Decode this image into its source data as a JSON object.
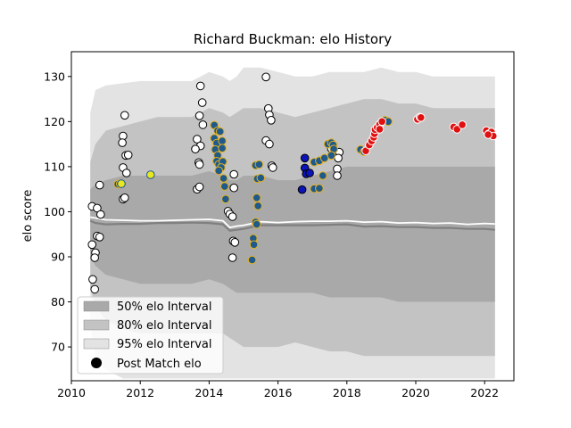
{
  "chart_data": {
    "type": "scatter",
    "title": "Richard Buckman: elo History",
    "xlabel": "",
    "ylabel": "elo score",
    "xlim": [
      2010,
      2022.85
    ],
    "ylim": [
      62.5,
      135.5
    ],
    "xticks": [
      2010,
      2012,
      2014,
      2016,
      2018,
      2020,
      2022
    ],
    "yticks": [
      70,
      80,
      90,
      100,
      110,
      120,
      130
    ],
    "grid": false,
    "legend_placement": "lower-left",
    "legend": [
      {
        "label": "50% elo Interval",
        "kind": "band",
        "color": "#a9a9a9"
      },
      {
        "label": "80% elo Interval",
        "kind": "band",
        "color": "#c3c3c3"
      },
      {
        "label": "95% elo Interval",
        "kind": "band",
        "color": "#e3e3e3"
      },
      {
        "label": "Post Match elo",
        "kind": "marker",
        "color": "#000000"
      }
    ],
    "colors": {
      "band95": "#e3e3e3",
      "band80": "#c3c3c3",
      "band50": "#a9a9a9",
      "mean_line": "#ffffff",
      "median_line": "#808080"
    },
    "bands": {
      "x": [
        2010.55,
        2010.7,
        2011.0,
        2011.5,
        2012.0,
        2012.5,
        2013.0,
        2013.5,
        2014.0,
        2014.4,
        2014.6,
        2014.8,
        2015.0,
        2015.5,
        2016.0,
        2016.5,
        2017.0,
        2017.5,
        2018.0,
        2018.5,
        2019.0,
        2019.5,
        2020.0,
        2020.5,
        2021.0,
        2021.5,
        2022.0,
        2022.3
      ],
      "upper95": [
        122,
        127,
        128,
        128.5,
        129,
        129,
        129,
        129,
        131,
        130,
        129,
        130,
        132,
        132,
        131,
        130,
        130,
        131,
        131,
        131,
        132,
        131,
        131,
        130,
        130,
        130,
        130,
        130
      ],
      "upper80": [
        111,
        115,
        118,
        119,
        120,
        121,
        121,
        121,
        123,
        122,
        121,
        122,
        123,
        123,
        122,
        121,
        122,
        123,
        124,
        125,
        125,
        124,
        124,
        123,
        123,
        123,
        123,
        123
      ],
      "upper50": [
        105,
        106,
        107,
        108,
        108,
        108,
        108,
        108,
        109,
        108,
        107,
        107,
        108,
        108,
        107,
        107,
        108,
        109,
        110,
        110,
        110,
        110,
        110,
        110,
        110,
        110,
        110,
        110
      ],
      "lower50": [
        90,
        88,
        86,
        85,
        84,
        84,
        84,
        84,
        85,
        84,
        83,
        82,
        82,
        82,
        82,
        82,
        82,
        81,
        81,
        81,
        81,
        80,
        80,
        80,
        80,
        80,
        80,
        80
      ],
      "lower80": [
        83,
        79,
        76,
        74,
        73,
        73,
        73,
        73,
        73,
        73,
        72,
        71,
        70,
        70,
        70,
        71,
        70,
        69,
        69,
        68,
        68,
        68,
        68,
        68,
        68,
        68,
        68,
        68
      ],
      "lower95": [
        75,
        68,
        65,
        63,
        63,
        63,
        63,
        63,
        63,
        63,
        63,
        63,
        63,
        63,
        63,
        63,
        63,
        63,
        63,
        63,
        63,
        63,
        63,
        63,
        63,
        63,
        63,
        63
      ],
      "mean": [
        98.8,
        98.6,
        98.2,
        98.1,
        98.0,
        98.0,
        98.1,
        98.2,
        98.3,
        98.0,
        96.5,
        96.8,
        97.0,
        97.8,
        97.6,
        97.8,
        97.9,
        97.9,
        98.0,
        97.7,
        97.8,
        97.5,
        97.6,
        97.4,
        97.5,
        97.2,
        97.4,
        97.3
      ],
      "median": [
        98.0,
        97.5,
        97.2,
        97.3,
        97.3,
        97.5,
        97.5,
        97.6,
        97.5,
        97.2,
        95.8,
        96.0,
        96.2,
        97.0,
        97.0,
        97.0,
        97.0,
        97.1,
        97.2,
        96.7,
        96.8,
        96.6,
        96.6,
        96.4,
        96.4,
        96.2,
        96.2,
        96.0
      ]
    },
    "series": [
      {
        "fill": "#ffffff",
        "edge": "#000000",
        "points": [
          [
            2010.6,
            101.2
          ],
          [
            2010.75,
            100.8
          ],
          [
            2010.85,
            99.4
          ],
          [
            2010.75,
            94.6
          ],
          [
            2010.82,
            94.4
          ],
          [
            2010.6,
            92.7
          ],
          [
            2010.7,
            90.9
          ],
          [
            2010.68,
            89.8
          ],
          [
            2010.62,
            85.0
          ],
          [
            2010.68,
            82.8
          ],
          [
            2010.82,
            105.9
          ],
          [
            2011.55,
            121.4
          ],
          [
            2011.5,
            116.8
          ],
          [
            2011.48,
            115.3
          ],
          [
            2011.58,
            112.5
          ],
          [
            2011.65,
            112.6
          ],
          [
            2011.5,
            109.8
          ],
          [
            2011.6,
            108.6
          ],
          [
            2011.5,
            102.8
          ],
          [
            2011.55,
            103.1
          ],
          [
            2013.75,
            127.9
          ],
          [
            2013.8,
            124.2
          ],
          [
            2013.72,
            121.3
          ],
          [
            2013.82,
            119.3
          ],
          [
            2013.65,
            116.1
          ],
          [
            2013.75,
            114.6
          ],
          [
            2013.6,
            113.9
          ],
          [
            2013.7,
            110.9
          ],
          [
            2013.72,
            110.5
          ],
          [
            2013.65,
            105.0
          ],
          [
            2013.72,
            105.5
          ],
          [
            2014.55,
            100.1
          ],
          [
            2014.6,
            99.5
          ],
          [
            2014.68,
            98.9
          ],
          [
            2014.7,
            93.5
          ],
          [
            2014.75,
            93.2
          ],
          [
            2014.68,
            89.8
          ],
          [
            2014.72,
            108.3
          ],
          [
            2014.72,
            105.3
          ],
          [
            2015.65,
            129.9
          ],
          [
            2015.72,
            122.9
          ],
          [
            2015.75,
            121.5
          ],
          [
            2015.8,
            120.3
          ],
          [
            2015.65,
            115.8
          ],
          [
            2015.75,
            115.0
          ],
          [
            2015.82,
            110.2
          ],
          [
            2015.85,
            109.8
          ],
          [
            2017.78,
            113.2
          ],
          [
            2017.75,
            111.9
          ],
          [
            2017.72,
            109.5
          ],
          [
            2017.72,
            108.0
          ],
          [
            2017.55,
            114.0
          ]
        ]
      },
      {
        "fill": "#1f5a8a",
        "edge": "#e5b020",
        "points": [
          [
            2011.35,
            106.1
          ],
          [
            2011.42,
            106.2
          ],
          [
            2014.15,
            119.2
          ],
          [
            2014.25,
            118.0
          ],
          [
            2014.32,
            117.8
          ],
          [
            2014.15,
            116.3
          ],
          [
            2014.22,
            115.2
          ],
          [
            2014.38,
            115.7
          ],
          [
            2014.18,
            113.8
          ],
          [
            2014.38,
            114.1
          ],
          [
            2014.25,
            112.5
          ],
          [
            2014.22,
            111.2
          ],
          [
            2014.28,
            110.5
          ],
          [
            2014.4,
            111.1
          ],
          [
            2014.35,
            109.8
          ],
          [
            2014.28,
            109.1
          ],
          [
            2014.42,
            107.4
          ],
          [
            2014.45,
            105.6
          ],
          [
            2014.48,
            102.8
          ],
          [
            2015.35,
            110.3
          ],
          [
            2015.45,
            110.5
          ],
          [
            2015.4,
            107.3
          ],
          [
            2015.5,
            107.5
          ],
          [
            2015.38,
            103.1
          ],
          [
            2015.42,
            101.3
          ],
          [
            2015.35,
            97.7
          ],
          [
            2015.38,
            97.2
          ],
          [
            2015.28,
            94.1
          ],
          [
            2015.3,
            92.7
          ],
          [
            2015.25,
            89.3
          ],
          [
            2017.05,
            111.0
          ],
          [
            2017.2,
            111.3
          ],
          [
            2017.05,
            105.1
          ],
          [
            2017.2,
            105.2
          ],
          [
            2017.3,
            108.0
          ],
          [
            2017.35,
            111.9
          ],
          [
            2017.45,
            115.0
          ],
          [
            2017.55,
            115.3
          ],
          [
            2017.6,
            114.8
          ],
          [
            2017.62,
            113.9
          ],
          [
            2017.55,
            112.5
          ],
          [
            2018.4,
            113.8
          ],
          [
            2018.5,
            113.3
          ],
          [
            2019.1,
            120.3
          ],
          [
            2019.2,
            120.0
          ]
        ]
      },
      {
        "fill": "#0b14b8",
        "edge": "#000000",
        "points": [
          [
            2016.78,
            111.9
          ],
          [
            2016.78,
            109.7
          ],
          [
            2016.82,
            108.4
          ],
          [
            2016.92,
            108.6
          ],
          [
            2016.7,
            104.9
          ]
        ]
      },
      {
        "fill": "#e8e820",
        "edge": "#1f5a8a",
        "points": [
          [
            2011.45,
            106.2
          ],
          [
            2012.3,
            108.2
          ]
        ]
      },
      {
        "fill": "#e01010",
        "edge": "#ffffff",
        "points": [
          [
            2018.55,
            113.5
          ],
          [
            2018.65,
            114.8
          ],
          [
            2018.72,
            115.7
          ],
          [
            2018.78,
            116.5
          ],
          [
            2018.8,
            117.3
          ],
          [
            2018.82,
            118.2
          ],
          [
            2018.88,
            118.7
          ],
          [
            2018.95,
            119.4
          ],
          [
            2018.95,
            118.3
          ],
          [
            2019.02,
            120.0
          ],
          [
            2020.05,
            120.5
          ],
          [
            2020.12,
            121.0
          ],
          [
            2020.15,
            120.9
          ],
          [
            2021.1,
            118.8
          ],
          [
            2021.2,
            118.3
          ],
          [
            2021.35,
            119.3
          ],
          [
            2022.05,
            118.0
          ],
          [
            2022.12,
            117.3
          ],
          [
            2022.2,
            117.7
          ],
          [
            2022.25,
            116.8
          ],
          [
            2022.1,
            117.1
          ]
        ]
      }
    ]
  }
}
